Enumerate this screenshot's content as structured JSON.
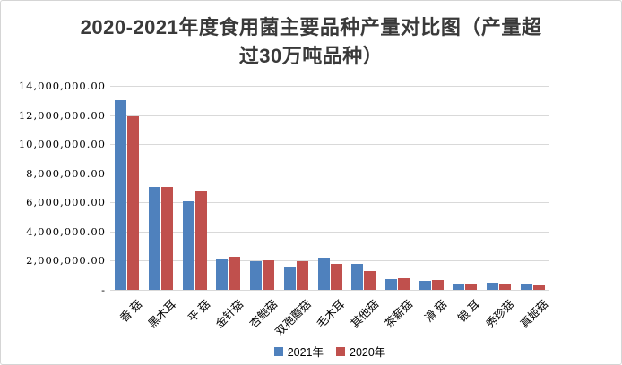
{
  "chart_data": {
    "type": "bar",
    "title": "2020-2021年度食用菌主要品种产量对比图（产量超过30万吨品种）",
    "xlabel": "",
    "ylabel": "",
    "ylim": [
      0,
      14000000
    ],
    "y_tick_interval": 2000000,
    "y_tick_labels": [
      "14,000,000.00",
      "12,000,000.00",
      "10,000,000.00",
      "8,000,000.00",
      "6,000,000.00",
      "4,000,000.00",
      "2,000,000.00",
      "-"
    ],
    "grid": true,
    "legend_position": "bottom",
    "categories": [
      "香 菇",
      "黑木耳",
      "平 菇",
      "金针菇",
      "杏鲍菇",
      "双孢蘑菇",
      "毛木耳",
      "其他菇",
      "茶薪菇",
      "滑 菇",
      "银 耳",
      "秀珍菇",
      "真姬菇"
    ],
    "series": [
      {
        "name": "2021年",
        "color": "#4F81BD",
        "values": [
          13000000,
          7050000,
          6100000,
          2100000,
          1950000,
          1550000,
          2200000,
          1800000,
          750000,
          600000,
          420000,
          480000,
          460000
        ]
      },
      {
        "name": "2020年",
        "color": "#C0504D",
        "values": [
          11900000,
          7050000,
          6800000,
          2250000,
          2050000,
          1950000,
          1800000,
          1300000,
          800000,
          650000,
          430000,
          360000,
          320000
        ]
      }
    ]
  },
  "colors": {
    "accent_blue": "#4F81BD",
    "accent_red": "#C0504D",
    "gridline": "#D9D9D9",
    "frame_border": "#D5D5D5",
    "title_text": "#3A3A3A",
    "axis_text": "#000000",
    "background": "#FFFFFF"
  }
}
